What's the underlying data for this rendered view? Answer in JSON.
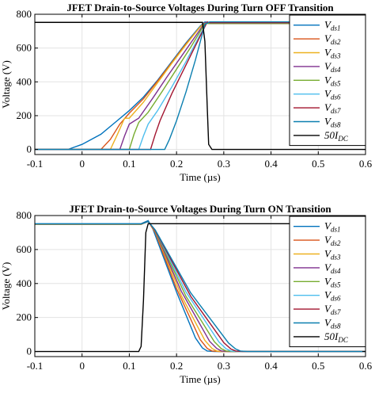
{
  "chart_data": [
    {
      "type": "line",
      "title": "JFET Drain-to-Source Voltages During Turn OFF Transition",
      "xlabel": "Time (µs)",
      "ylabel": "Voltage (V)",
      "xlim": [
        -0.1,
        0.6
      ],
      "ylim": [
        -30,
        800
      ],
      "xticks": [
        -0.1,
        0,
        0.1,
        0.2,
        0.3,
        0.4,
        0.5,
        0.6
      ],
      "xtick_labels": [
        "-0.1",
        "0",
        "0.1",
        "0.2",
        "0.3",
        "0.4",
        "0.5",
        "0.6"
      ],
      "yticks": [
        0,
        200,
        400,
        600,
        800
      ],
      "ytick_labels": [
        "0",
        "200",
        "400",
        "600",
        "800"
      ],
      "grid": true,
      "legend_position": "right",
      "series": [
        {
          "name": "Vds1",
          "legend_main": "V",
          "legend_sub": "ds1",
          "color": "#0072bd",
          "x": [
            -0.1,
            -0.03,
            0.0,
            0.04,
            0.07,
            0.1,
            0.13,
            0.16,
            0.19,
            0.22,
            0.25,
            0.26,
            0.27,
            0.3,
            0.6
          ],
          "y": [
            0,
            0,
            30,
            90,
            160,
            230,
            310,
            410,
            520,
            630,
            730,
            755,
            750,
            750,
            750
          ]
        },
        {
          "name": "Vds2",
          "legend_main": "V",
          "legend_sub": "ds2",
          "color": "#d95319",
          "x": [
            -0.1,
            0.04,
            0.06,
            0.08,
            0.1,
            0.13,
            0.16,
            0.19,
            0.22,
            0.25,
            0.26,
            0.27,
            0.3,
            0.6
          ],
          "y": [
            0,
            0,
            60,
            150,
            215,
            300,
            405,
            515,
            625,
            725,
            750,
            745,
            745,
            745
          ]
        },
        {
          "name": "Vds3",
          "legend_main": "V",
          "legend_sub": "ds3",
          "color": "#edb120",
          "x": [
            -0.1,
            0.06,
            0.075,
            0.09,
            0.1,
            0.13,
            0.16,
            0.19,
            0.22,
            0.25,
            0.26,
            0.27,
            0.3,
            0.6
          ],
          "y": [
            0,
            0,
            90,
            185,
            185,
            280,
            395,
            510,
            620,
            725,
            750,
            745,
            745,
            745
          ]
        },
        {
          "name": "Vds4",
          "legend_main": "V",
          "legend_sub": "ds4",
          "color": "#7e2f8e",
          "x": [
            -0.1,
            0.08,
            0.09,
            0.1,
            0.12,
            0.15,
            0.18,
            0.21,
            0.24,
            0.26,
            0.27,
            0.3,
            0.6
          ],
          "y": [
            0,
            0,
            80,
            150,
            185,
            305,
            430,
            550,
            670,
            750,
            745,
            745,
            745
          ]
        },
        {
          "name": "Vds5",
          "legend_main": "V",
          "legend_sub": "ds5",
          "color": "#77ac30",
          "x": [
            -0.1,
            0.1,
            0.11,
            0.12,
            0.14,
            0.17,
            0.2,
            0.23,
            0.26,
            0.27,
            0.3,
            0.6
          ],
          "y": [
            0,
            0,
            90,
            160,
            220,
            345,
            475,
            605,
            745,
            745,
            745,
            745
          ]
        },
        {
          "name": "Vds6",
          "legend_main": "V",
          "legend_sub": "ds6",
          "color": "#4dbeee",
          "x": [
            -0.1,
            0.12,
            0.13,
            0.14,
            0.16,
            0.19,
            0.22,
            0.25,
            0.265,
            0.27,
            0.3,
            0.6
          ],
          "y": [
            0,
            0,
            80,
            150,
            230,
            370,
            520,
            680,
            755,
            750,
            750,
            750
          ]
        },
        {
          "name": "Vds7",
          "legend_main": "V",
          "legend_sub": "ds7",
          "color": "#a2142f",
          "x": [
            -0.1,
            0.145,
            0.155,
            0.165,
            0.19,
            0.22,
            0.25,
            0.265,
            0.27,
            0.3,
            0.6
          ],
          "y": [
            0,
            0,
            90,
            170,
            330,
            500,
            670,
            755,
            750,
            750,
            750
          ]
        },
        {
          "name": "Vds8",
          "legend_main": "V",
          "legend_sub": "ds8",
          "color": "#0b7fb0",
          "x": [
            -0.1,
            0.175,
            0.185,
            0.2,
            0.22,
            0.24,
            0.26,
            0.27,
            0.3,
            0.6
          ],
          "y": [
            0,
            0,
            60,
            170,
            340,
            530,
            740,
            755,
            755,
            755
          ]
        },
        {
          "name": "50IDC",
          "legend_main": "50I",
          "legend_sub": "DC",
          "color": "#000000",
          "x": [
            -0.1,
            0.255,
            0.26,
            0.265,
            0.268,
            0.275,
            0.29,
            0.6
          ],
          "y": [
            752,
            752,
            640,
            250,
            30,
            0,
            0,
            0
          ]
        }
      ]
    },
    {
      "type": "line",
      "title": "JFET Drain-to-Source Voltages During Turn ON Transition",
      "xlabel": "Time (µs)",
      "ylabel": "Voltage (V)",
      "xlim": [
        -0.1,
        0.6
      ],
      "ylim": [
        -30,
        800
      ],
      "xticks": [
        -0.1,
        0,
        0.1,
        0.2,
        0.3,
        0.4,
        0.5,
        0.6
      ],
      "xtick_labels": [
        "-0.1",
        "0",
        "0.1",
        "0.2",
        "0.3",
        "0.4",
        "0.5",
        "0.6"
      ],
      "yticks": [
        0,
        200,
        400,
        600,
        800
      ],
      "ytick_labels": [
        "0",
        "200",
        "400",
        "600",
        "800"
      ],
      "grid": true,
      "legend_position": "right",
      "series": [
        {
          "name": "Vds1",
          "legend_main": "V",
          "legend_sub": "ds1",
          "color": "#0072bd",
          "x": [
            -0.1,
            0.125,
            0.14,
            0.15,
            0.2,
            0.24,
            0.255,
            0.265,
            0.28,
            0.6
          ],
          "y": [
            752,
            752,
            770,
            720,
            350,
            80,
            20,
            3,
            0,
            0
          ]
        },
        {
          "name": "Vds2",
          "legend_main": "V",
          "legend_sub": "ds2",
          "color": "#d95319",
          "x": [
            -0.1,
            0.125,
            0.14,
            0.155,
            0.2,
            0.25,
            0.265,
            0.275,
            0.29,
            0.6
          ],
          "y": [
            748,
            748,
            765,
            700,
            370,
            70,
            18,
            3,
            0,
            0
          ]
        },
        {
          "name": "Vds3",
          "legend_main": "V",
          "legend_sub": "ds3",
          "color": "#edb120",
          "x": [
            -0.1,
            0.125,
            0.14,
            0.155,
            0.21,
            0.26,
            0.275,
            0.285,
            0.3,
            0.6
          ],
          "y": [
            748,
            748,
            765,
            705,
            330,
            65,
            18,
            3,
            0,
            0
          ]
        },
        {
          "name": "Vds4",
          "legend_main": "V",
          "legend_sub": "ds4",
          "color": "#7e2f8e",
          "x": [
            -0.1,
            0.125,
            0.14,
            0.155,
            0.21,
            0.27,
            0.285,
            0.295,
            0.31,
            0.6
          ],
          "y": [
            750,
            750,
            765,
            708,
            355,
            60,
            18,
            3,
            0,
            0
          ]
        },
        {
          "name": "Vds5",
          "legend_main": "V",
          "legend_sub": "ds5",
          "color": "#77ac30",
          "x": [
            -0.1,
            0.125,
            0.14,
            0.155,
            0.22,
            0.28,
            0.295,
            0.305,
            0.32,
            0.6
          ],
          "y": [
            750,
            750,
            765,
            710,
            325,
            58,
            16,
            3,
            0,
            0
          ]
        },
        {
          "name": "Vds6",
          "legend_main": "V",
          "legend_sub": "ds6",
          "color": "#4dbeee",
          "x": [
            -0.1,
            0.125,
            0.14,
            0.155,
            0.22,
            0.29,
            0.305,
            0.315,
            0.33,
            0.6
          ],
          "y": [
            750,
            750,
            765,
            712,
            350,
            55,
            16,
            3,
            0,
            0
          ]
        },
        {
          "name": "Vds7",
          "legend_main": "V",
          "legend_sub": "ds7",
          "color": "#a2142f",
          "x": [
            -0.1,
            0.125,
            0.14,
            0.155,
            0.23,
            0.3,
            0.315,
            0.325,
            0.34,
            0.6
          ],
          "y": [
            750,
            750,
            765,
            712,
            325,
            52,
            15,
            3,
            0,
            0
          ]
        },
        {
          "name": "Vds8",
          "legend_main": "V",
          "legend_sub": "ds8",
          "color": "#0b7fb0",
          "x": [
            -0.1,
            0.125,
            0.14,
            0.155,
            0.23,
            0.31,
            0.325,
            0.335,
            0.35,
            0.6
          ],
          "y": [
            750,
            750,
            765,
            715,
            345,
            50,
            15,
            3,
            0,
            0
          ]
        },
        {
          "name": "50IDC",
          "legend_main": "50I",
          "legend_sub": "DC",
          "color": "#000000",
          "x": [
            -0.1,
            0.12,
            0.125,
            0.13,
            0.135,
            0.14,
            0.6
          ],
          "y": [
            0,
            0,
            30,
            300,
            700,
            752,
            752
          ]
        }
      ]
    }
  ]
}
